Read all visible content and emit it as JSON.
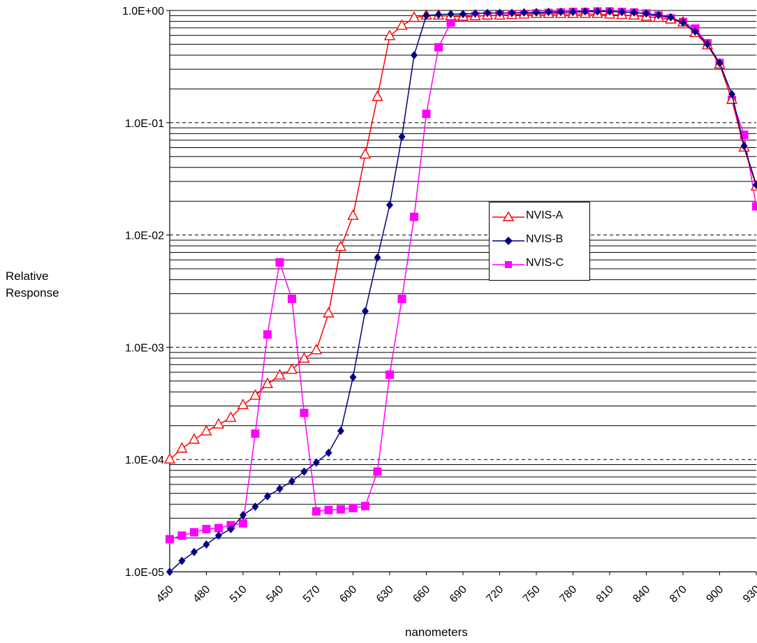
{
  "chart_data": {
    "type": "line",
    "xlabel": "nanometers",
    "ylabel_line1": "Relative",
    "ylabel_line2": "Response",
    "y_scale": "log",
    "ylim": [
      1e-05,
      1
    ],
    "xlim": [
      450,
      930
    ],
    "grid": true,
    "legend_position": "right-middle",
    "x_ticks": [
      450,
      480,
      510,
      540,
      570,
      600,
      630,
      660,
      690,
      720,
      750,
      780,
      810,
      840,
      870,
      900,
      930
    ],
    "y_ticks": [
      "1.0E-05",
      "1.0E-04",
      "1.0E-03",
      "1.0E-02",
      "1.0E-01",
      "1.0E+00"
    ],
    "x": [
      450,
      460,
      470,
      480,
      490,
      500,
      510,
      520,
      530,
      540,
      550,
      560,
      570,
      580,
      590,
      600,
      610,
      620,
      630,
      640,
      650,
      660,
      670,
      680,
      690,
      700,
      710,
      720,
      730,
      740,
      750,
      760,
      770,
      780,
      790,
      800,
      810,
      820,
      830,
      840,
      850,
      860,
      870,
      880,
      890,
      900,
      910,
      920,
      930
    ],
    "series": [
      {
        "name": "NVIS-A",
        "color": "#ff0000",
        "marker": "triangle-open",
        "values": [
          0.0001,
          0.000125,
          0.00015,
          0.000178,
          0.000205,
          0.000235,
          0.000305,
          0.00037,
          0.00047,
          0.00056,
          0.00063,
          0.00079,
          0.00094,
          0.002,
          0.0078,
          0.0148,
          0.052,
          0.17,
          0.59,
          0.73,
          0.86,
          0.9,
          0.9,
          0.89,
          0.88,
          0.89,
          0.9,
          0.9,
          0.91,
          0.92,
          0.93,
          0.93,
          0.93,
          0.93,
          0.93,
          0.93,
          0.92,
          0.91,
          0.9,
          0.88,
          0.86,
          0.83,
          0.78,
          0.63,
          0.49,
          0.33,
          0.16,
          0.06,
          0.027
        ]
      },
      {
        "name": "NVIS-B",
        "color": "#000080",
        "marker": "diamond",
        "values": [
          1e-05,
          1.25e-05,
          1.5e-05,
          1.75e-05,
          2.1e-05,
          2.4e-05,
          3.2e-05,
          3.8e-05,
          4.7e-05,
          5.5e-05,
          6.4e-05,
          7.8e-05,
          9.4e-05,
          0.000115,
          0.00018,
          0.00054,
          0.0021,
          0.0063,
          0.0185,
          0.075,
          0.4,
          0.9,
          0.92,
          0.93,
          0.93,
          0.94,
          0.95,
          0.95,
          0.95,
          0.96,
          0.96,
          0.97,
          0.97,
          0.97,
          0.98,
          0.98,
          0.98,
          0.97,
          0.96,
          0.94,
          0.91,
          0.87,
          0.78,
          0.65,
          0.5,
          0.34,
          0.18,
          0.062,
          0.028
        ]
      },
      {
        "name": "NVIS-C",
        "color": "#ff00ff",
        "marker": "square",
        "values": [
          1.95e-05,
          2.1e-05,
          2.25e-05,
          2.4e-05,
          2.45e-05,
          2.6e-05,
          2.7e-05,
          0.00017,
          0.0013,
          0.0057,
          0.0027,
          0.00026,
          3.45e-05,
          3.55e-05,
          3.6e-05,
          3.7e-05,
          3.85e-05,
          7.8e-05,
          0.00057,
          0.0027,
          0.0145,
          0.12,
          0.47,
          0.78,
          0.87,
          0.89,
          0.9,
          0.91,
          0.92,
          0.93,
          0.94,
          0.95,
          0.96,
          0.97,
          0.97,
          0.98,
          0.98,
          0.97,
          0.96,
          0.94,
          0.9,
          0.85,
          0.79,
          0.69,
          0.51,
          0.34,
          0.16,
          0.078,
          0.018
        ]
      }
    ]
  }
}
